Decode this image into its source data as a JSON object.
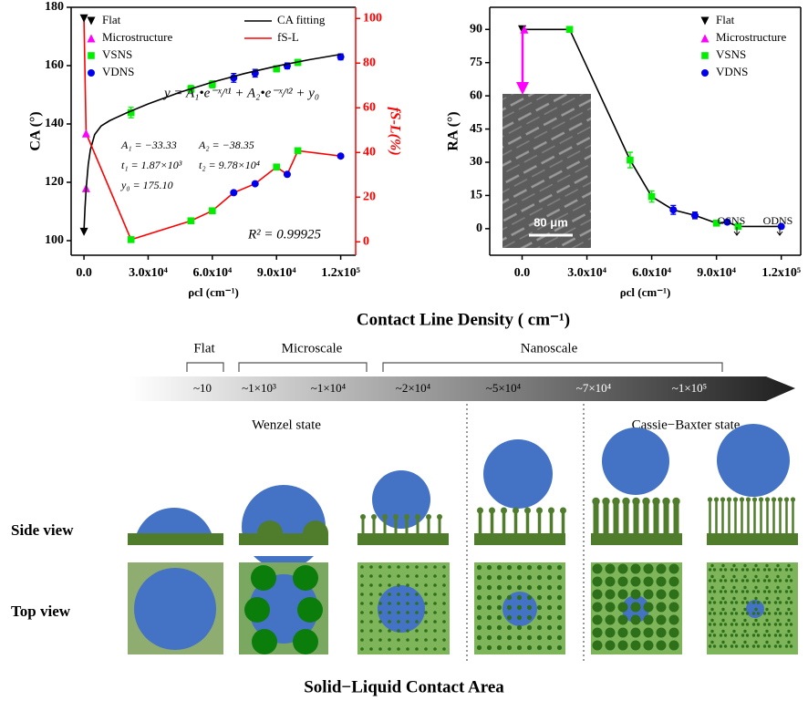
{
  "chart_data": [
    {
      "type": "scatter",
      "x_label": "ρcl (cm⁻¹)",
      "y_label": "CA (°)",
      "y2_label": "fS-L(%)",
      "y2_color": "#ff0000",
      "xlim": [
        -6000,
        127000
      ],
      "xticks": [
        {
          "value": 0,
          "label": "0.0"
        },
        {
          "value": 30000,
          "label": "3.0x10⁴"
        },
        {
          "value": 60000,
          "label": "6.0x10⁴"
        },
        {
          "value": 90000,
          "label": "9.0x10⁴"
        },
        {
          "value": 120000,
          "label": "1.2x10⁵"
        }
      ],
      "ylim": [
        95,
        180
      ],
      "yticks": [
        100,
        120,
        140,
        160,
        180
      ],
      "y2lim": [
        -6,
        105
      ],
      "y2ticks": [
        0,
        20,
        40,
        60,
        80,
        100
      ],
      "legend": "upper left",
      "series": [
        {
          "name": "Flat",
          "color": "#000000",
          "marker": "triangle-down",
          "x": [
            0
          ],
          "values": [
            103
          ]
        },
        {
          "name": "Microstructure",
          "color": "#ff00ff",
          "marker": "triangle-up",
          "x": [
            1000
          ],
          "values": [
            118
          ]
        },
        {
          "name": "VSNS",
          "color": "#00ee00",
          "marker": "square",
          "x": [
            22000,
            50000,
            60000,
            90000,
            100000
          ],
          "values": [
            143.9,
            152,
            153.6,
            158.9,
            161.1
          ],
          "errors": [
            1.8,
            1.2,
            1.2,
            1.0,
            1.0
          ]
        },
        {
          "name": "VDNS",
          "color": "#0000ee",
          "marker": "circle",
          "x": [
            70000,
            80000,
            95000,
            120000
          ],
          "values": [
            155.8,
            157.4,
            159.9,
            163
          ],
          "errors": [
            1.5,
            1.3,
            1.0,
            1.0
          ]
        },
        {
          "name": "CA fitting",
          "color": "#000000",
          "line": true,
          "x": [
            0,
            500,
            1000,
            2000,
            3000,
            5000,
            8000,
            12000,
            20000,
            30000,
            45000,
            60000,
            75000,
            90000,
            105000,
            120000
          ],
          "values": [
            103.42,
            111.43,
            117.62,
            126.08,
            131.21,
            136.36,
            139.3,
            141.13,
            143.84,
            146.88,
            150.89,
            154.34,
            157.29,
            159.82,
            161.99,
            163.86
          ]
        },
        {
          "name": "fS-L",
          "color": "#ff0000",
          "line": true,
          "axis": "y2",
          "x": [
            0,
            1000,
            22000,
            50000,
            60000,
            70000,
            80000,
            90000,
            95000,
            100000,
            120000
          ],
          "values": [
            100,
            48.6,
            1,
            9.4,
            13.9,
            22,
            26,
            33.5,
            30.2,
            40.8,
            38.4
          ],
          "point_markers": [
            "triangle-down",
            "triangle-up",
            "square",
            "square",
            "square",
            "circle",
            "circle",
            "square",
            "circle",
            "square",
            "circle"
          ],
          "point_colors": [
            "#000000",
            "#ff00ff",
            "#00ee00",
            "#00ee00",
            "#00ee00",
            "#0000ee",
            "#0000ee",
            "#00ee00",
            "#0000ee",
            "#00ee00",
            "#0000ee"
          ]
        }
      ],
      "annotations": {
        "equation": "y = A₁•e⁻ˣ/ᵗ¹ + A₂•e⁻ˣ/ᵗ² + y₀",
        "A1": "A₁ = −33.33",
        "A2": "A₂ = −38.35",
        "t1": "t₁ = 1.87×10³",
        "t2": "t₂ = 9.78×10⁴",
        "y0": "y₀ = 175.10",
        "r2": "R² = 0.99925"
      }
    },
    {
      "type": "scatter",
      "x_label": "ρcl (cm⁻¹)",
      "y_label": "RA (°)",
      "xlim": [
        -15000,
        129000
      ],
      "xticks": [
        {
          "value": 0,
          "label": "0.0"
        },
        {
          "value": 30000,
          "label": "3.0x10⁴"
        },
        {
          "value": 60000,
          "label": "6.0x10⁴"
        },
        {
          "value": 90000,
          "label": "9.0x10⁴"
        },
        {
          "value": 120000,
          "label": "1.2x10⁵"
        }
      ],
      "ylim": [
        -12,
        100
      ],
      "yticks": [
        0,
        15,
        30,
        45,
        60,
        75,
        90
      ],
      "legend": "upper right",
      "series": [
        {
          "color": "#000000",
          "line": true,
          "x": [
            0,
            22000,
            50000,
            60000,
            70000,
            80000,
            90000,
            95000,
            100000,
            120000
          ],
          "values": [
            90,
            90,
            31,
            14.5,
            8.5,
            6,
            2.5,
            3,
            1,
            1
          ]
        },
        {
          "name": "Flat",
          "color": "#000000",
          "marker": "triangle-down",
          "x": [
            0
          ],
          "values": [
            90
          ]
        },
        {
          "name": "Microstructure",
          "color": "#ff00ff",
          "marker": "triangle-up",
          "x": [
            1000
          ],
          "values": [
            90
          ]
        },
        {
          "name": "VSNS",
          "color": "#00ee00",
          "marker": "square",
          "x": [
            22000,
            50000,
            60000,
            90000,
            100000
          ],
          "values": [
            90,
            31,
            14.5,
            2.5,
            1
          ],
          "errors": [
            1,
            3.5,
            2.5,
            0.8,
            0.8
          ]
        },
        {
          "name": "VDNS",
          "color": "#0000ee",
          "marker": "circle",
          "x": [
            70000,
            80000,
            95000,
            120000
          ],
          "values": [
            8.5,
            6,
            3,
            1
          ],
          "errors": [
            2,
            1.5,
            1,
            0.5
          ]
        }
      ],
      "annotations": {
        "osns": "OSNS",
        "odns": "ODNS",
        "scale": "80 μm"
      }
    }
  ],
  "axis_heading": "Contact Line Density ( cm⁻¹)",
  "diagram": {
    "regimes": [
      "Flat",
      "Microscale",
      "Nanoscale"
    ],
    "density_labels": [
      "~10",
      "~1×10³",
      "~1×10⁴",
      "~2×10⁴",
      "~5×10⁴",
      "~7×10⁴",
      "~1×10⁵"
    ],
    "states": [
      "Wenzel state",
      "Cassie−Baxter state"
    ],
    "rows": [
      "Side view",
      "Top view"
    ],
    "footer": "Solid−Liquid Contact Area"
  }
}
